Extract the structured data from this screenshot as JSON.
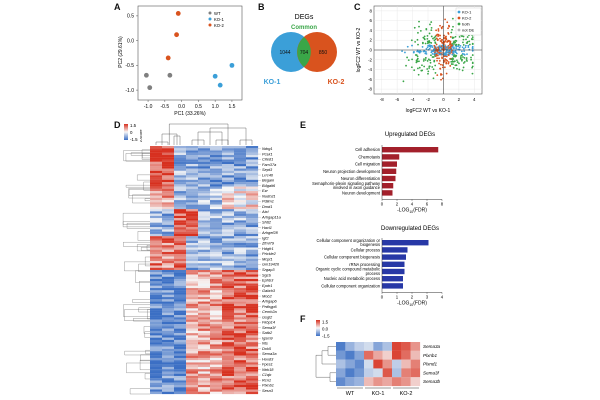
{
  "panel_letters": [
    "A",
    "B",
    "C",
    "D",
    "E",
    "F"
  ],
  "colors": {
    "wt": "#7f7f7f",
    "ko1": "#3b9fd8",
    "ko2": "#d9531e",
    "common": "#3aa648",
    "up_bar": "#a3202b",
    "down_bar": "#2738a6",
    "heat_high": "#d7301f",
    "heat_mid": "#f7f7f7",
    "heat_low": "#3b6fc4",
    "grey_dot": "#b5b5b5"
  },
  "chart_data": [
    {
      "panel": "A",
      "type": "scatter",
      "xlabel": "PC1 (33.26%)",
      "ylabel": "PC2 (29.61%)",
      "x_ticks": [
        "-1.0",
        "-0.5",
        "0.0",
        "0.5",
        "1.0",
        "1.5"
      ],
      "y_ticks": [
        "0.5",
        "0.0",
        "-0.5",
        "-1.0"
      ],
      "xlim": [
        -1.3,
        1.8
      ],
      "ylim": [
        -1.2,
        0.7
      ],
      "legend": [
        "WT",
        "KO-1",
        "KO-2"
      ],
      "series": [
        {
          "name": "WT",
          "points": [
            [
              -1.05,
              -0.7
            ],
            [
              -0.95,
              -0.95
            ],
            [
              -0.35,
              -0.7
            ]
          ]
        },
        {
          "name": "KO-1",
          "points": [
            [
              1.0,
              -0.72
            ],
            [
              1.15,
              -0.9
            ],
            [
              1.5,
              -0.5
            ]
          ]
        },
        {
          "name": "KO-2",
          "points": [
            [
              -0.1,
              0.55
            ],
            [
              -0.15,
              0.12
            ],
            [
              -0.4,
              -0.35
            ]
          ]
        }
      ]
    },
    {
      "panel": "B",
      "type": "venn",
      "title": "DEGs",
      "common_label": "Common",
      "left_label": "KO-1",
      "right_label": "KO-2",
      "left_only": 1044,
      "common": 704,
      "right_only": 850
    },
    {
      "panel": "C",
      "type": "scatter",
      "xlabel": "logFC2 WT vs KO-1",
      "ylabel": "logFC2 WT vs KO-2",
      "x_ticks": [
        "-8",
        "-6",
        "-4",
        "-2",
        "0",
        "2",
        "4"
      ],
      "y_ticks": [
        "8",
        "6",
        "4",
        "2",
        "0",
        "-2",
        "-4",
        "-6",
        "-8"
      ],
      "legend": [
        "KO-1",
        "KO-2",
        "both",
        "not DE"
      ]
    },
    {
      "panel": "D",
      "type": "heatmap",
      "scale_ticks": [
        "1.5",
        "0",
        "-1.5"
      ],
      "scale_label": "z-score",
      "genes": [
        "Ndrg1",
        "Pcsk1",
        "Cited1",
        "Fam37a",
        "Sept3",
        "Lrrc40",
        "Begain",
        "B4galt6",
        "Ezr",
        "Nudcd1",
        "Pdlim1",
        "Dmd1",
        "Atxl",
        "Arhgap11a",
        "Shtl2",
        "Hacl1",
        "Arhgef28",
        "Igf2",
        "Zfml79",
        "Hdgfr1",
        "Prickle2",
        "Mcpt1",
        "Gm19426",
        "Srgap3",
        "Sgcb",
        "Ephb3",
        "Epdr1",
        "Gabrb3",
        "Mob2",
        "Arhgap6",
        "Prdhgp6",
        "Cemh2a",
        "Gsgl2",
        "Fkbp14",
        "Sema3f",
        "Satb2",
        "Igsm9",
        "Nts",
        "Dok5",
        "Sema3a",
        "Hoxd3",
        "Fpes1",
        "Ntrk18",
        "C1qb",
        "Rcn1",
        "Plxnb1",
        "Sesn3"
      ]
    },
    {
      "panel": "E",
      "type": "bar",
      "up_title": "Upregulated DEGs",
      "up_categories": [
        "Cell adhesion",
        "Chemotaxis",
        "Cell migration",
        "Neuron projection development",
        "Neuron differentiation",
        "Semaphorin-plexin signaling pathway involved in axon guidance",
        "Neuron development"
      ],
      "up_values": [
        7.5,
        2.3,
        2.0,
        1.9,
        1.8,
        1.5,
        1.4
      ],
      "up_ticks": [
        "0",
        "2",
        "4",
        "6",
        "8"
      ],
      "down_title": "Downregulated DEGs",
      "down_categories": [
        "Cellular component organization or biogenesis",
        "Cellular process",
        "Cellular component biogenesis",
        "rRNA processing",
        "Organic cyclic compound metabolic process",
        "Nucleic acid metabolic process",
        "Cellular component organization"
      ],
      "down_values": [
        3.1,
        1.7,
        1.6,
        1.5,
        1.5,
        1.4,
        1.4
      ],
      "down_ticks": [
        "0",
        "1",
        "2",
        "3",
        "4"
      ],
      "xlabel_prefix": "-LOG",
      "xlabel_sub": "10",
      "xlabel_suffix": "(FDR)"
    },
    {
      "panel": "F",
      "type": "heatmap",
      "scale_ticks": [
        "1.5",
        "0.0",
        "-1.5"
      ],
      "genes": [
        "Sema3a",
        "Plxnb1",
        "Plxnd1",
        "Sema3f",
        "Sema3b"
      ],
      "groups": [
        "WT",
        "KO-1",
        "KO-2"
      ]
    }
  ]
}
